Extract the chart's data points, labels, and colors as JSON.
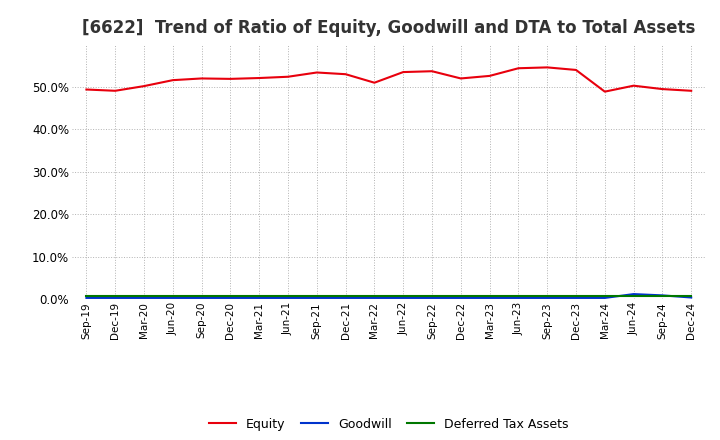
{
  "title": "[6622]  Trend of Ratio of Equity, Goodwill and DTA to Total Assets",
  "x_labels": [
    "Sep-19",
    "Dec-19",
    "Mar-20",
    "Jun-20",
    "Sep-20",
    "Dec-20",
    "Mar-21",
    "Jun-21",
    "Sep-21",
    "Dec-21",
    "Mar-22",
    "Jun-22",
    "Sep-22",
    "Dec-22",
    "Mar-23",
    "Jun-23",
    "Sep-23",
    "Dec-23",
    "Mar-24",
    "Jun-24",
    "Sep-24",
    "Dec-24"
  ],
  "equity": [
    49.3,
    49.0,
    50.1,
    51.5,
    51.9,
    51.8,
    52.0,
    52.3,
    53.3,
    52.9,
    50.9,
    53.4,
    53.6,
    51.9,
    52.5,
    54.3,
    54.5,
    53.9,
    48.8,
    50.2,
    49.4,
    49.0
  ],
  "goodwill": [
    0.3,
    0.3,
    0.3,
    0.3,
    0.3,
    0.3,
    0.3,
    0.3,
    0.3,
    0.3,
    0.3,
    0.3,
    0.3,
    0.3,
    0.3,
    0.3,
    0.3,
    0.3,
    0.3,
    1.2,
    0.9,
    0.4
  ],
  "dta": [
    0.8,
    0.8,
    0.8,
    0.8,
    0.8,
    0.8,
    0.8,
    0.8,
    0.8,
    0.8,
    0.8,
    0.8,
    0.8,
    0.8,
    0.8,
    0.8,
    0.8,
    0.8,
    0.8,
    0.8,
    0.8,
    0.8
  ],
  "equity_color": "#e8000d",
  "goodwill_color": "#0033cc",
  "dta_color": "#007700",
  "ylim": [
    0,
    60
  ],
  "yticks": [
    0,
    10,
    20,
    30,
    40,
    50
  ],
  "background_color": "#ffffff",
  "plot_bg_color": "#ffffff",
  "grid_color": "#aaaaaa",
  "title_fontsize": 12,
  "legend_labels": [
    "Equity",
    "Goodwill",
    "Deferred Tax Assets"
  ]
}
